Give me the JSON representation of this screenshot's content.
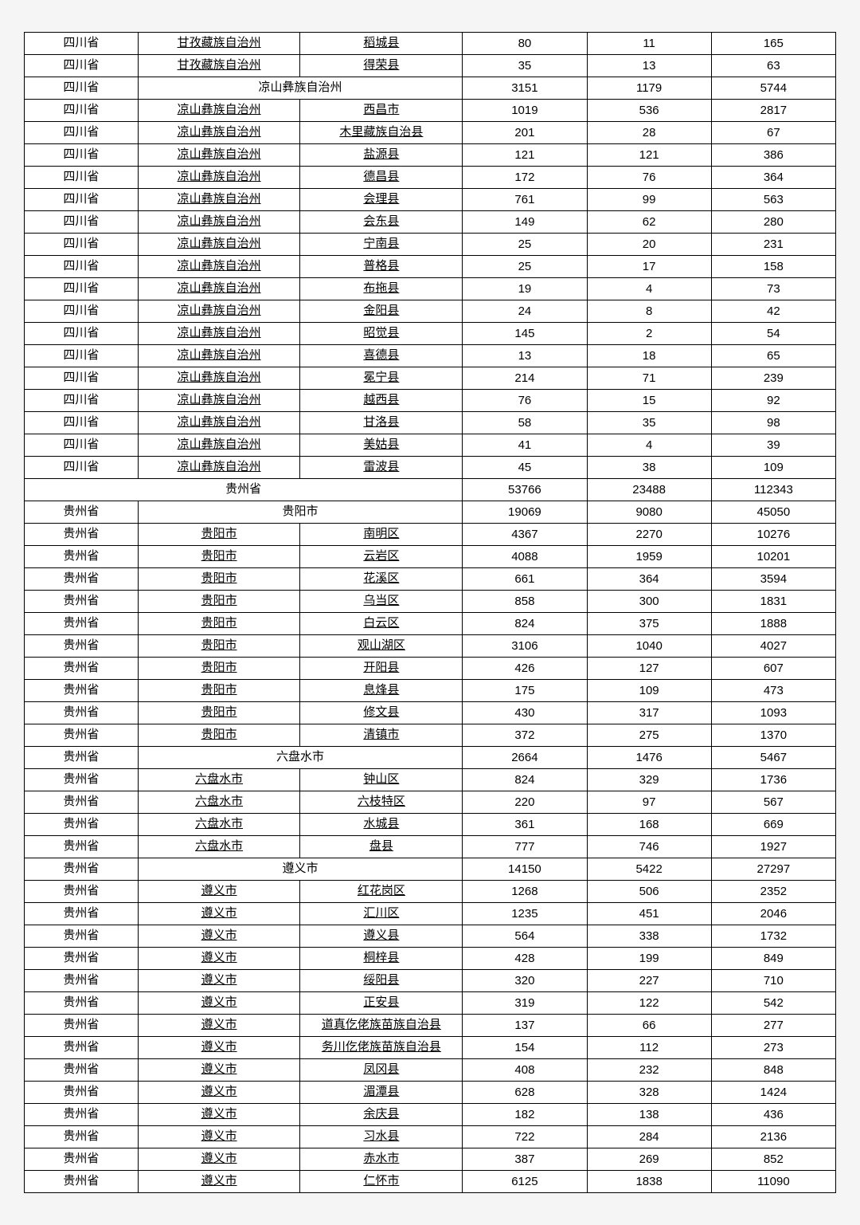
{
  "table": {
    "columns": [
      "province",
      "prefecture",
      "county",
      "v1",
      "v2",
      "v3"
    ],
    "col_widths_pct": [
      14,
      20,
      20,
      15.33,
      15.33,
      15.33
    ],
    "border_color": "#000000",
    "background_color": "#ffffff",
    "page_background": "#f5f5f5",
    "font_family": "SimSun",
    "font_size_pt": 11,
    "rows": [
      {
        "province": "四川省",
        "prefecture": "甘孜藏族自治州",
        "county": "稻城县",
        "v1": "80",
        "v2": "11",
        "v3": "165",
        "u_pref": true,
        "u_county": true
      },
      {
        "province": "四川省",
        "prefecture": "甘孜藏族自治州",
        "county": "得荣县",
        "v1": "35",
        "v2": "13",
        "v3": "63",
        "u_pref": true,
        "u_county": true
      },
      {
        "province": "四川省",
        "prefecture": "凉山彝族自治州",
        "county": "",
        "v1": "3151",
        "v2": "1179",
        "v3": "5744",
        "span_pref_county": true
      },
      {
        "province": "四川省",
        "prefecture": "凉山彝族自治州",
        "county": "西昌市",
        "v1": "1019",
        "v2": "536",
        "v3": "2817",
        "u_pref": true,
        "u_county": true
      },
      {
        "province": "四川省",
        "prefecture": "凉山彝族自治州",
        "county": "木里藏族自治县",
        "v1": "201",
        "v2": "28",
        "v3": "67",
        "u_pref": true,
        "u_county": true
      },
      {
        "province": "四川省",
        "prefecture": "凉山彝族自治州",
        "county": "盐源县",
        "v1": "121",
        "v2": "121",
        "v3": "386",
        "u_pref": true,
        "u_county": true
      },
      {
        "province": "四川省",
        "prefecture": "凉山彝族自治州",
        "county": "德昌县",
        "v1": "172",
        "v2": "76",
        "v3": "364",
        "u_pref": true,
        "u_county": true
      },
      {
        "province": "四川省",
        "prefecture": "凉山彝族自治州",
        "county": "会理县",
        "v1": "761",
        "v2": "99",
        "v3": "563",
        "u_pref": true,
        "u_county": true
      },
      {
        "province": "四川省",
        "prefecture": "凉山彝族自治州",
        "county": "会东县",
        "v1": "149",
        "v2": "62",
        "v3": "280",
        "u_pref": true,
        "u_county": true
      },
      {
        "province": "四川省",
        "prefecture": "凉山彝族自治州",
        "county": "宁南县",
        "v1": "25",
        "v2": "20",
        "v3": "231",
        "u_pref": true,
        "u_county": true
      },
      {
        "province": "四川省",
        "prefecture": "凉山彝族自治州",
        "county": "普格县",
        "v1": "25",
        "v2": "17",
        "v3": "158",
        "u_pref": true,
        "u_county": true
      },
      {
        "province": "四川省",
        "prefecture": "凉山彝族自治州",
        "county": "布拖县",
        "v1": "19",
        "v2": "4",
        "v3": "73",
        "u_pref": true,
        "u_county": true
      },
      {
        "province": "四川省",
        "prefecture": "凉山彝族自治州",
        "county": "金阳县",
        "v1": "24",
        "v2": "8",
        "v3": "42",
        "u_pref": true,
        "u_county": true
      },
      {
        "province": "四川省",
        "prefecture": "凉山彝族自治州",
        "county": "昭觉县",
        "v1": "145",
        "v2": "2",
        "v3": "54",
        "u_pref": true,
        "u_county": true
      },
      {
        "province": "四川省",
        "prefecture": "凉山彝族自治州",
        "county": "喜德县",
        "v1": "13",
        "v2": "18",
        "v3": "65",
        "u_pref": true,
        "u_county": true
      },
      {
        "province": "四川省",
        "prefecture": "凉山彝族自治州",
        "county": "冕宁县",
        "v1": "214",
        "v2": "71",
        "v3": "239",
        "u_pref": true,
        "u_county": true
      },
      {
        "province": "四川省",
        "prefecture": "凉山彝族自治州",
        "county": "越西县",
        "v1": "76",
        "v2": "15",
        "v3": "92",
        "u_pref": true,
        "u_county": true
      },
      {
        "province": "四川省",
        "prefecture": "凉山彝族自治州",
        "county": "甘洛县",
        "v1": "58",
        "v2": "35",
        "v3": "98",
        "u_pref": true,
        "u_county": true
      },
      {
        "province": "四川省",
        "prefecture": "凉山彝族自治州",
        "county": "美姑县",
        "v1": "41",
        "v2": "4",
        "v3": "39",
        "u_pref": true,
        "u_county": true
      },
      {
        "province": "四川省",
        "prefecture": "凉山彝族自治州",
        "county": "雷波县",
        "v1": "45",
        "v2": "38",
        "v3": "109",
        "u_pref": true,
        "u_county": true
      },
      {
        "province": "贵州省",
        "prefecture": "",
        "county": "",
        "v1": "53766",
        "v2": "23488",
        "v3": "112343",
        "span_all": true
      },
      {
        "province": "贵州省",
        "prefecture": "贵阳市",
        "county": "",
        "v1": "19069",
        "v2": "9080",
        "v3": "45050",
        "span_pref_county": true
      },
      {
        "province": "贵州省",
        "prefecture": "贵阳市",
        "county": "南明区",
        "v1": "4367",
        "v2": "2270",
        "v3": "10276",
        "u_pref": true,
        "u_county": true
      },
      {
        "province": "贵州省",
        "prefecture": "贵阳市",
        "county": "云岩区",
        "v1": "4088",
        "v2": "1959",
        "v3": "10201",
        "u_pref": true,
        "u_county": true
      },
      {
        "province": "贵州省",
        "prefecture": "贵阳市",
        "county": "花溪区",
        "v1": "661",
        "v2": "364",
        "v3": "3594",
        "u_pref": true,
        "u_county": true
      },
      {
        "province": "贵州省",
        "prefecture": "贵阳市",
        "county": "乌当区",
        "v1": "858",
        "v2": "300",
        "v3": "1831",
        "u_pref": true,
        "u_county": true
      },
      {
        "province": "贵州省",
        "prefecture": "贵阳市",
        "county": "白云区",
        "v1": "824",
        "v2": "375",
        "v3": "1888",
        "u_pref": true,
        "u_county": true
      },
      {
        "province": "贵州省",
        "prefecture": "贵阳市",
        "county": "观山湖区",
        "v1": "3106",
        "v2": "1040",
        "v3": "4027",
        "u_pref": true,
        "u_county": true
      },
      {
        "province": "贵州省",
        "prefecture": "贵阳市",
        "county": "开阳县",
        "v1": "426",
        "v2": "127",
        "v3": "607",
        "u_pref": true,
        "u_county": true
      },
      {
        "province": "贵州省",
        "prefecture": "贵阳市",
        "county": "息烽县",
        "v1": "175",
        "v2": "109",
        "v3": "473",
        "u_pref": true,
        "u_county": true
      },
      {
        "province": "贵州省",
        "prefecture": "贵阳市",
        "county": "修文县",
        "v1": "430",
        "v2": "317",
        "v3": "1093",
        "u_pref": true,
        "u_county": true
      },
      {
        "province": "贵州省",
        "prefecture": "贵阳市",
        "county": "清镇市",
        "v1": "372",
        "v2": "275",
        "v3": "1370",
        "u_pref": true,
        "u_county": true
      },
      {
        "province": "贵州省",
        "prefecture": "六盘水市",
        "county": "",
        "v1": "2664",
        "v2": "1476",
        "v3": "5467",
        "span_pref_county": true
      },
      {
        "province": "贵州省",
        "prefecture": "六盘水市",
        "county": "钟山区",
        "v1": "824",
        "v2": "329",
        "v3": "1736",
        "u_pref": true,
        "u_county": true
      },
      {
        "province": "贵州省",
        "prefecture": "六盘水市",
        "county": "六枝特区",
        "v1": "220",
        "v2": "97",
        "v3": "567",
        "u_pref": true,
        "u_county": true
      },
      {
        "province": "贵州省",
        "prefecture": "六盘水市",
        "county": "水城县",
        "v1": "361",
        "v2": "168",
        "v3": "669",
        "u_pref": true,
        "u_county": true
      },
      {
        "province": "贵州省",
        "prefecture": "六盘水市",
        "county": "盘县",
        "v1": "777",
        "v2": "746",
        "v3": "1927",
        "u_pref": true,
        "u_county": true
      },
      {
        "province": "贵州省",
        "prefecture": "遵义市",
        "county": "",
        "v1": "14150",
        "v2": "5422",
        "v3": "27297",
        "span_pref_county": true
      },
      {
        "province": "贵州省",
        "prefecture": "遵义市",
        "county": "红花岗区",
        "v1": "1268",
        "v2": "506",
        "v3": "2352",
        "u_pref": true,
        "u_county": true
      },
      {
        "province": "贵州省",
        "prefecture": "遵义市",
        "county": "汇川区",
        "v1": "1235",
        "v2": "451",
        "v3": "2046",
        "u_pref": true,
        "u_county": true
      },
      {
        "province": "贵州省",
        "prefecture": "遵义市",
        "county": "遵义县",
        "v1": "564",
        "v2": "338",
        "v3": "1732",
        "u_pref": true,
        "u_county": true
      },
      {
        "province": "贵州省",
        "prefecture": "遵义市",
        "county": "桐梓县",
        "v1": "428",
        "v2": "199",
        "v3": "849",
        "u_pref": true,
        "u_county": true
      },
      {
        "province": "贵州省",
        "prefecture": "遵义市",
        "county": "绥阳县",
        "v1": "320",
        "v2": "227",
        "v3": "710",
        "u_pref": true,
        "u_county": true
      },
      {
        "province": "贵州省",
        "prefecture": "遵义市",
        "county": "正安县",
        "v1": "319",
        "v2": "122",
        "v3": "542",
        "u_pref": true,
        "u_county": true
      },
      {
        "province": "贵州省",
        "prefecture": "遵义市",
        "county": "道真仡佬族苗族自治县",
        "v1": "137",
        "v2": "66",
        "v3": "277",
        "u_pref": true,
        "u_county": true
      },
      {
        "province": "贵州省",
        "prefecture": "遵义市",
        "county": "务川仡佬族苗族自治县",
        "v1": "154",
        "v2": "112",
        "v3": "273",
        "u_pref": true,
        "u_county": true
      },
      {
        "province": "贵州省",
        "prefecture": "遵义市",
        "county": "凤冈县",
        "v1": "408",
        "v2": "232",
        "v3": "848",
        "u_pref": true,
        "u_county": true
      },
      {
        "province": "贵州省",
        "prefecture": "遵义市",
        "county": "湄潭县",
        "v1": "628",
        "v2": "328",
        "v3": "1424",
        "u_pref": true,
        "u_county": true
      },
      {
        "province": "贵州省",
        "prefecture": "遵义市",
        "county": "余庆县",
        "v1": "182",
        "v2": "138",
        "v3": "436",
        "u_pref": true,
        "u_county": true
      },
      {
        "province": "贵州省",
        "prefecture": "遵义市",
        "county": "习水县",
        "v1": "722",
        "v2": "284",
        "v3": "2136",
        "u_pref": true,
        "u_county": true
      },
      {
        "province": "贵州省",
        "prefecture": "遵义市",
        "county": "赤水市",
        "v1": "387",
        "v2": "269",
        "v3": "852",
        "u_pref": true,
        "u_county": true
      },
      {
        "province": "贵州省",
        "prefecture": "遵义市",
        "county": "仁怀市",
        "v1": "6125",
        "v2": "1838",
        "v3": "11090",
        "u_pref": true,
        "u_county": true
      }
    ]
  }
}
